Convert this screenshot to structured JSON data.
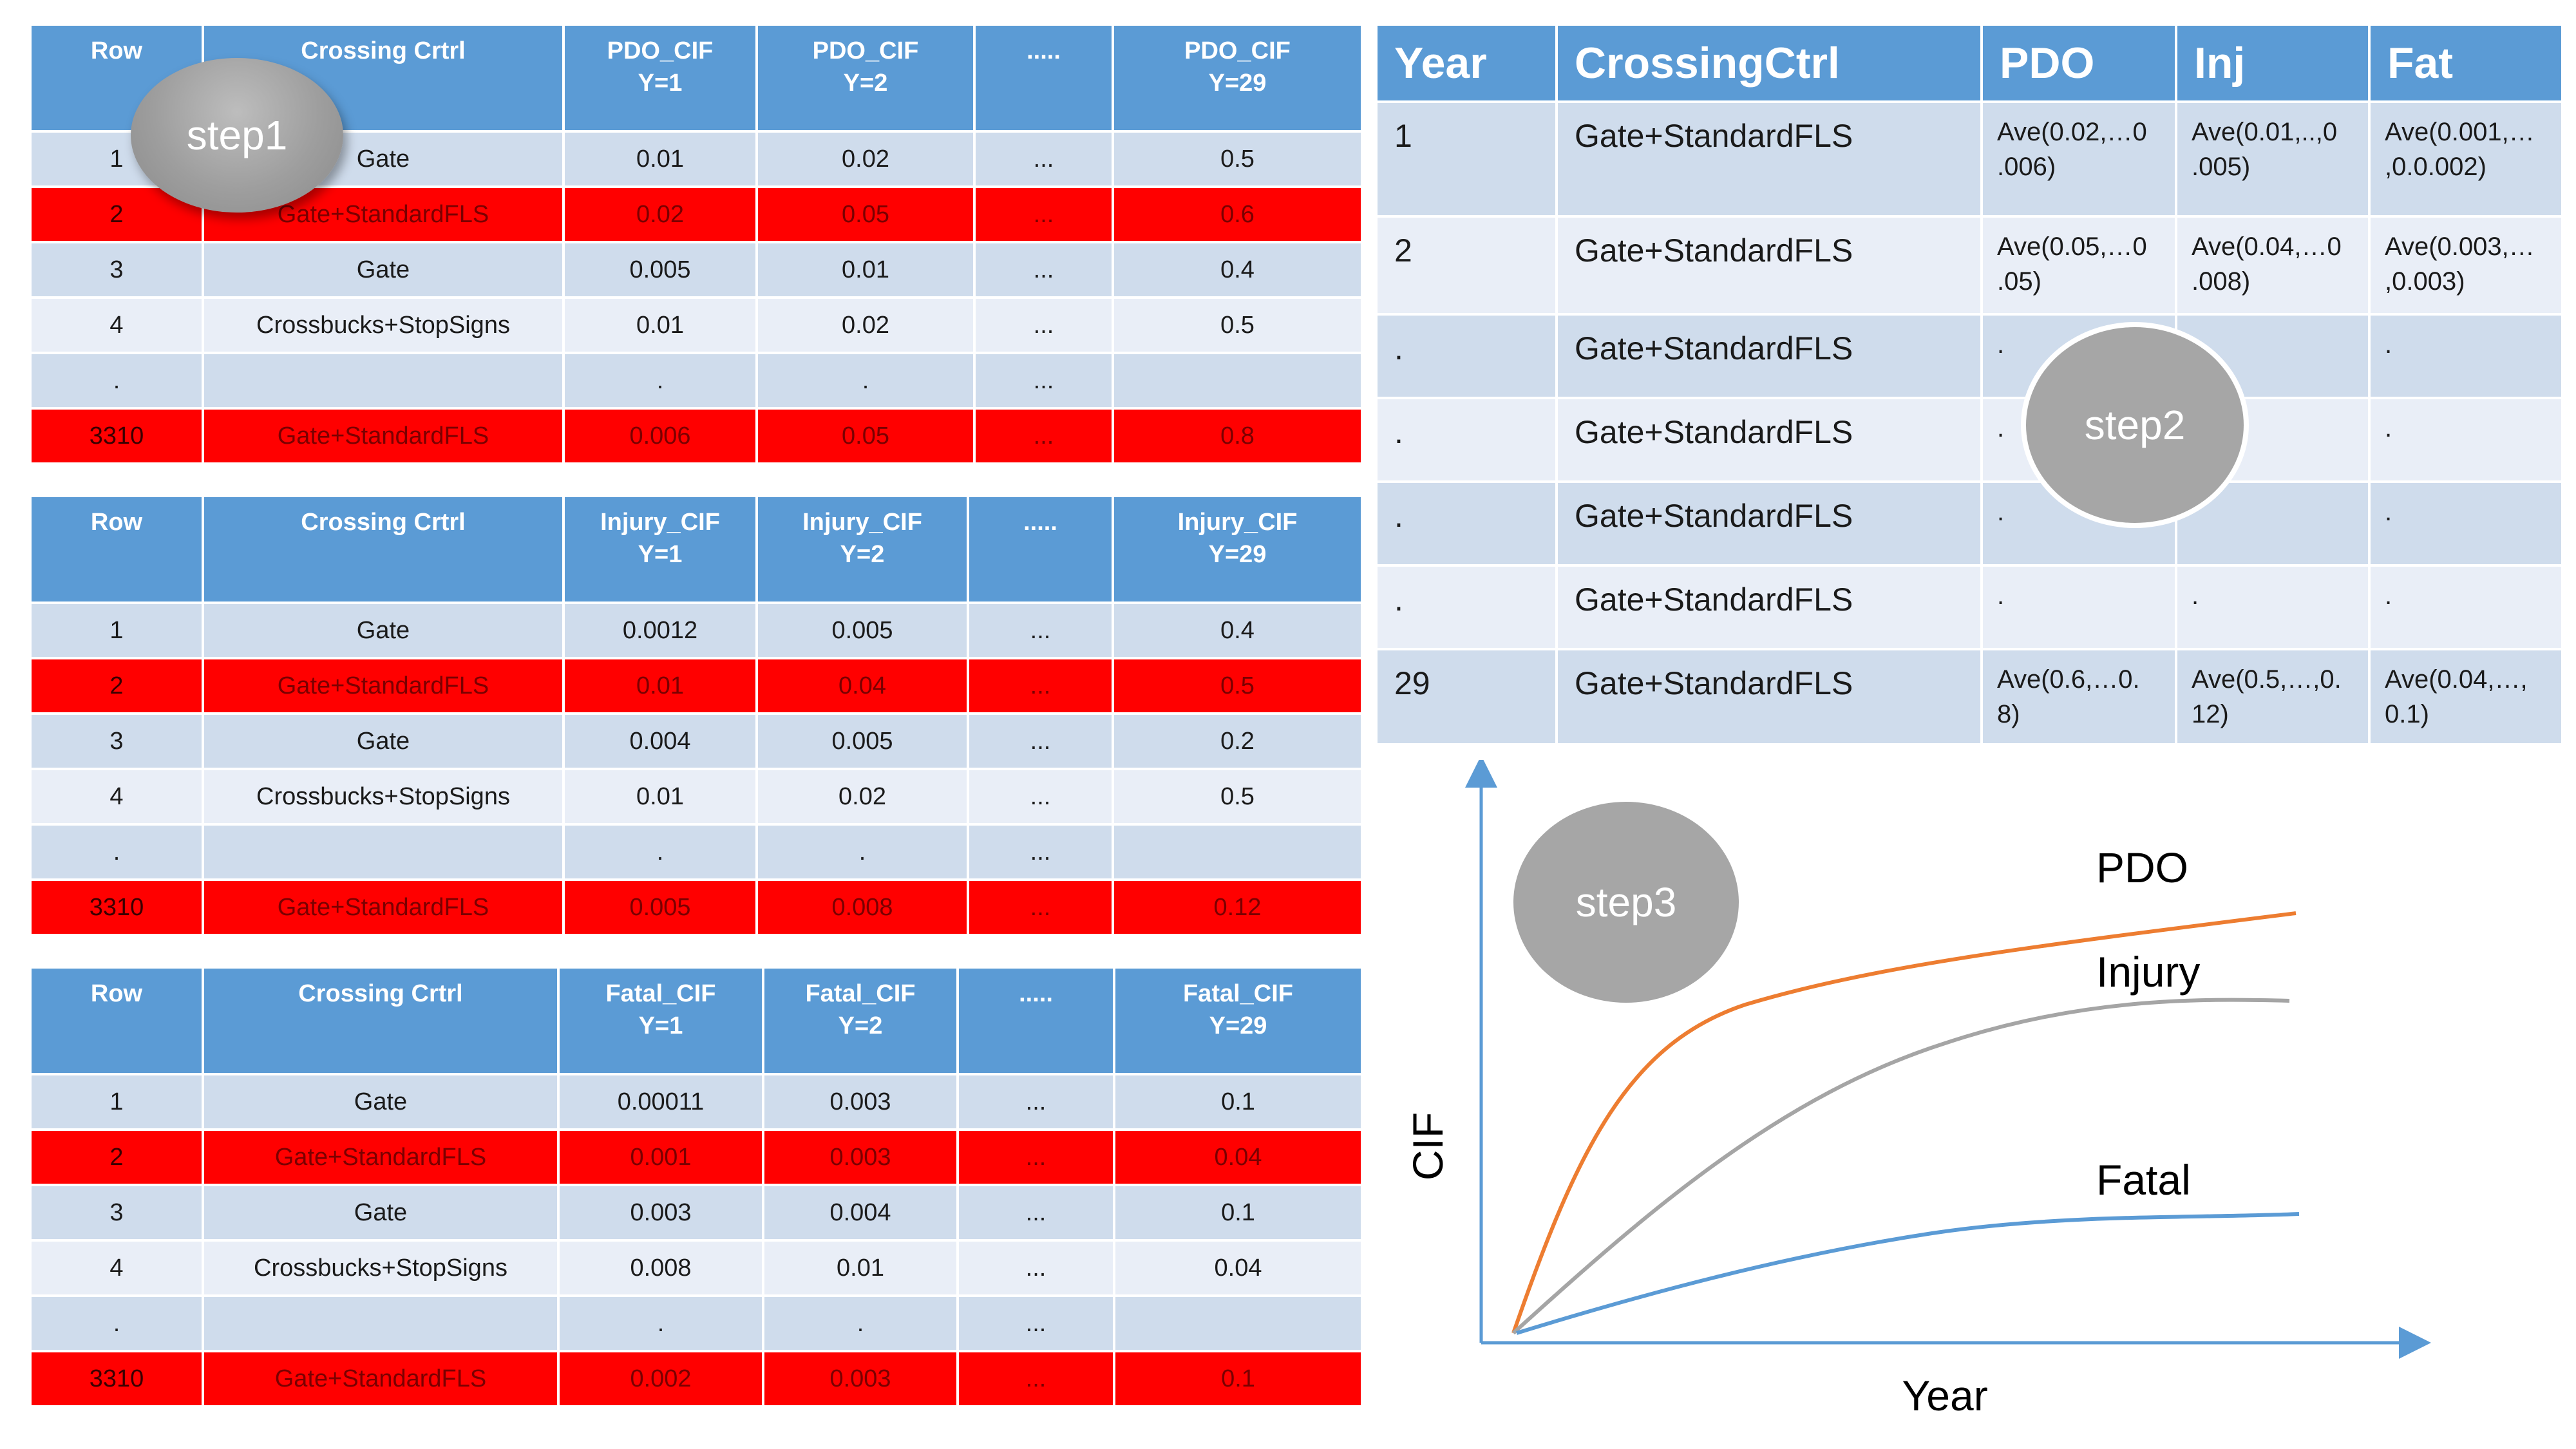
{
  "step_labels": {
    "step1": "step1",
    "step2": "step2",
    "step3": "step3"
  },
  "cif_tables": [
    {
      "headers": [
        "Row",
        "Crossing Crtrl",
        "PDO_CIF\nY=1",
        "PDO_CIF\nY=2",
        ".....",
        "PDO_CIF\nY=29"
      ],
      "rows": [
        {
          "row": "1",
          "ctrl": "Gate",
          "y1": "0.01",
          "y2": "0.02",
          "mid": "...",
          "y29": "0.5"
        },
        {
          "row": "2",
          "ctrl": "Gate+StandardFLS",
          "y1": "0.02",
          "y2": "0.05",
          "mid": "...",
          "y29": "0.6"
        },
        {
          "row": "3",
          "ctrl": "Gate",
          "y1": "0.005",
          "y2": "0.01",
          "mid": "...",
          "y29": "0.4"
        },
        {
          "row": "4",
          "ctrl": "Crossbucks+StopSigns",
          "y1": "0.01",
          "y2": "0.02",
          "mid": "...",
          "y29": "0.5"
        },
        {
          "row": ".",
          "ctrl": "",
          "y1": ".",
          "y2": ".",
          "mid": "...",
          "y29": ""
        },
        {
          "row": "3310",
          "ctrl": "Gate+StandardFLS",
          "y1": "0.006",
          "y2": "0.05",
          "mid": "...",
          "y29": "0.8"
        }
      ]
    },
    {
      "headers": [
        "Row",
        "Crossing Crtrl",
        "Injury_CIF\nY=1",
        "Injury_CIF\nY=2",
        ".....",
        "Injury_CIF\nY=29"
      ],
      "rows": [
        {
          "row": "1",
          "ctrl": "Gate",
          "y1": "0.0012",
          "y2": "0.005",
          "mid": "...",
          "y29": "0.4"
        },
        {
          "row": "2",
          "ctrl": "Gate+StandardFLS",
          "y1": "0.01",
          "y2": "0.04",
          "mid": "...",
          "y29": "0.5"
        },
        {
          "row": "3",
          "ctrl": "Gate",
          "y1": "0.004",
          "y2": "0.005",
          "mid": "...",
          "y29": "0.2"
        },
        {
          "row": "4",
          "ctrl": "Crossbucks+StopSigns",
          "y1": "0.01",
          "y2": "0.02",
          "mid": "...",
          "y29": "0.5"
        },
        {
          "row": ".",
          "ctrl": "",
          "y1": ".",
          "y2": ".",
          "mid": "...",
          "y29": ""
        },
        {
          "row": "3310",
          "ctrl": "Gate+StandardFLS",
          "y1": "0.005",
          "y2": "0.008",
          "mid": "...",
          "y29": "0.12"
        }
      ]
    },
    {
      "headers": [
        "Row",
        "Crossing Crtrl",
        "Fatal_CIF\nY=1",
        "Fatal_CIF\nY=2",
        ".....",
        "Fatal_CIF\nY=29"
      ],
      "rows": [
        {
          "row": "1",
          "ctrl": "Gate",
          "y1": "0.00011",
          "y2": "0.003",
          "mid": "...",
          "y29": "0.1"
        },
        {
          "row": "2",
          "ctrl": "Gate+StandardFLS",
          "y1": "0.001",
          "y2": "0.003",
          "mid": "...",
          "y29": "0.04"
        },
        {
          "row": "3",
          "ctrl": "Gate",
          "y1": "0.003",
          "y2": "0.004",
          "mid": "...",
          "y29": "0.1"
        },
        {
          "row": "4",
          "ctrl": "Crossbucks+StopSigns",
          "y1": "0.008",
          "y2": "0.01",
          "mid": "...",
          "y29": "0.04"
        },
        {
          "row": ".",
          "ctrl": "",
          "y1": ".",
          "y2": ".",
          "mid": "...",
          "y29": ""
        },
        {
          "row": "3310",
          "ctrl": "Gate+StandardFLS",
          "y1": "0.002",
          "y2": "0.003",
          "mid": "...",
          "y29": "0.1"
        }
      ]
    }
  ],
  "year_table": {
    "headers": [
      "Year",
      "CrossingCtrl",
      "PDO",
      "Inj",
      "Fat"
    ],
    "rows": [
      {
        "year": "1",
        "ctrl": "Gate+StandardFLS",
        "pdo": "Ave(0.02,…0\n.006)",
        "inj": "Ave(0.01,..,0\n.005)",
        "fat": "Ave(0.001,…\n,0.0.002)"
      },
      {
        "year": "2",
        "ctrl": "Gate+StandardFLS",
        "pdo": "Ave(0.05,…0\n.05)",
        "inj": "Ave(0.04,…0\n.008)",
        "fat": "Ave(0.003,…\n,0.003)"
      },
      {
        "year": ".",
        "ctrl": "Gate+StandardFLS",
        "pdo": ".",
        "inj": "",
        "fat": "."
      },
      {
        "year": ".",
        "ctrl": "Gate+StandardFLS",
        "pdo": ".",
        "inj": "",
        "fat": "."
      },
      {
        "year": ".",
        "ctrl": "Gate+StandardFLS",
        "pdo": ".",
        "inj": "",
        "fat": "."
      },
      {
        "year": ".",
        "ctrl": "Gate+StandardFLS",
        "pdo": ".",
        "inj": ".",
        "fat": "."
      },
      {
        "year": "29",
        "ctrl": "Gate+StandardFLS",
        "pdo": "Ave(0.6,…0.\n8)",
        "inj": "Ave(0.5,…,0.\n12)",
        "fat": "Ave(0.04,…,\n0.1)"
      }
    ]
  },
  "chart": {
    "xlabel": "Year",
    "ylabel": "CIF",
    "curves": [
      {
        "name": "PDO",
        "color": "#ed7d31"
      },
      {
        "name": "Injury",
        "color": "#a5a5a5"
      },
      {
        "name": "Fatal",
        "color": "#5b9bd5"
      }
    ],
    "axis_color": "#5b9bd5"
  }
}
